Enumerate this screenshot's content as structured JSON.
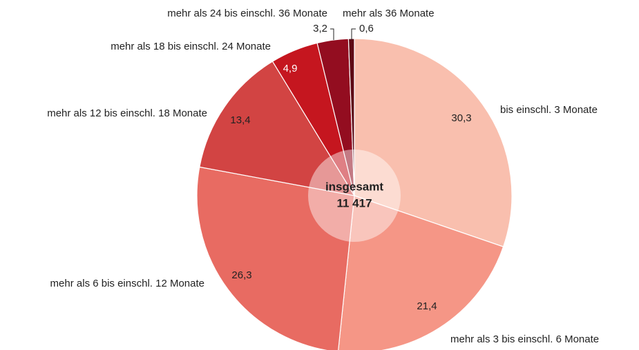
{
  "chart_data": {
    "type": "pie",
    "categories": [
      "bis einschl. 3 Monate",
      "mehr als 3 bis einschl. 6 Monate",
      "mehr als 6 bis einschl. 12 Monate",
      "mehr als 12 bis einschl. 18 Monate",
      "mehr als 18 bis einschl. 24 Monate",
      "mehr als 24 bis einschl. 36 Monate",
      "mehr als 36 Monate"
    ],
    "values": [
      30.3,
      21.4,
      26.3,
      13.4,
      4.9,
      3.2,
      0.6
    ],
    "value_labels": [
      "30,3",
      "21,4",
      "26,3",
      "13,4",
      "4,9",
      "3,2",
      "0,6"
    ],
    "colors": [
      "#f9bfae",
      "#f59686",
      "#e86b62",
      "#d24443",
      "#c5161f",
      "#930d20",
      "#5e0a15"
    ],
    "center_label": "insgesamt",
    "total": {
      "value": 11417,
      "label": "11 417"
    }
  }
}
